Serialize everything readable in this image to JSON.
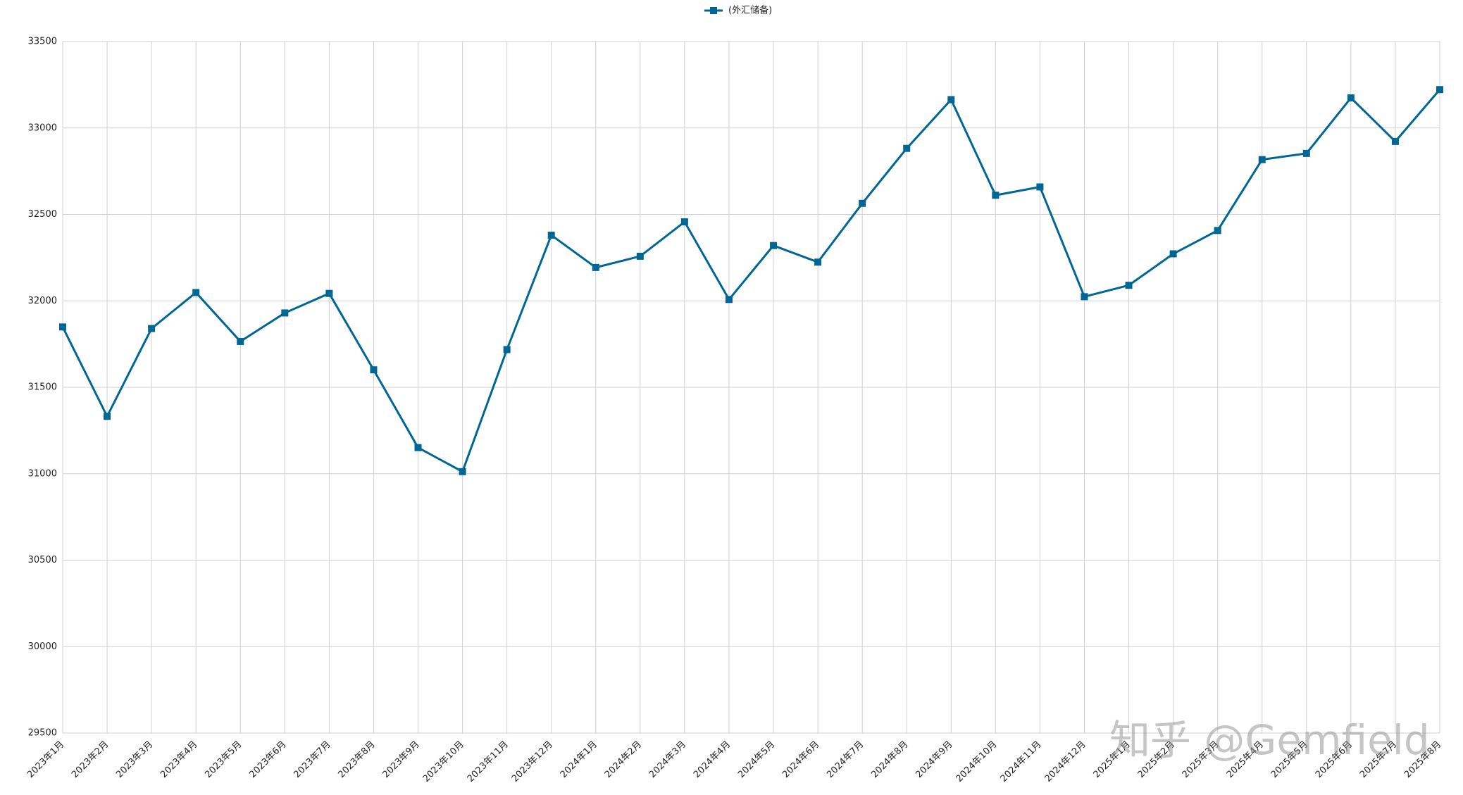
{
  "chart_data": {
    "type": "line",
    "categories": [
      "2023年1月",
      "2023年2月",
      "2023年3月",
      "2023年4月",
      "2023年5月",
      "2023年6月",
      "2023年7月",
      "2023年8月",
      "2023年9月",
      "2023年10月",
      "2023年11月",
      "2023年12月",
      "2024年1月",
      "2024年2月",
      "2024年3月",
      "2024年4月",
      "2024年5月",
      "2024年6月",
      "2024年7月",
      "2024年8月",
      "2024年9月",
      "2024年10月",
      "2024年11月",
      "2024年12月",
      "2025年1月",
      "2025年2月",
      "2025年3月",
      "2025年4月",
      "2025年5月",
      "2025年6月",
      "2025年7月",
      "2025年8月"
    ],
    "series": [
      {
        "name": "(外汇储备)",
        "color": "#006795",
        "values": [
          31849,
          31332,
          31840,
          32048,
          31765,
          31930,
          32043,
          31601,
          31151,
          31012,
          31718,
          32380,
          32193,
          32258,
          32457,
          32008,
          32320,
          32224,
          32564,
          32882,
          33164,
          32611,
          32659,
          32024,
          32090,
          32272,
          32407,
          32817,
          32853,
          33174,
          32922,
          33222
        ]
      }
    ],
    "ylim": [
      29500,
      33500
    ],
    "yticks": [
      29500,
      30000,
      30500,
      31000,
      31500,
      32000,
      32500,
      33000,
      33500
    ],
    "grid": true,
    "legend": "top",
    "watermark": "知乎 @Gemfield"
  }
}
